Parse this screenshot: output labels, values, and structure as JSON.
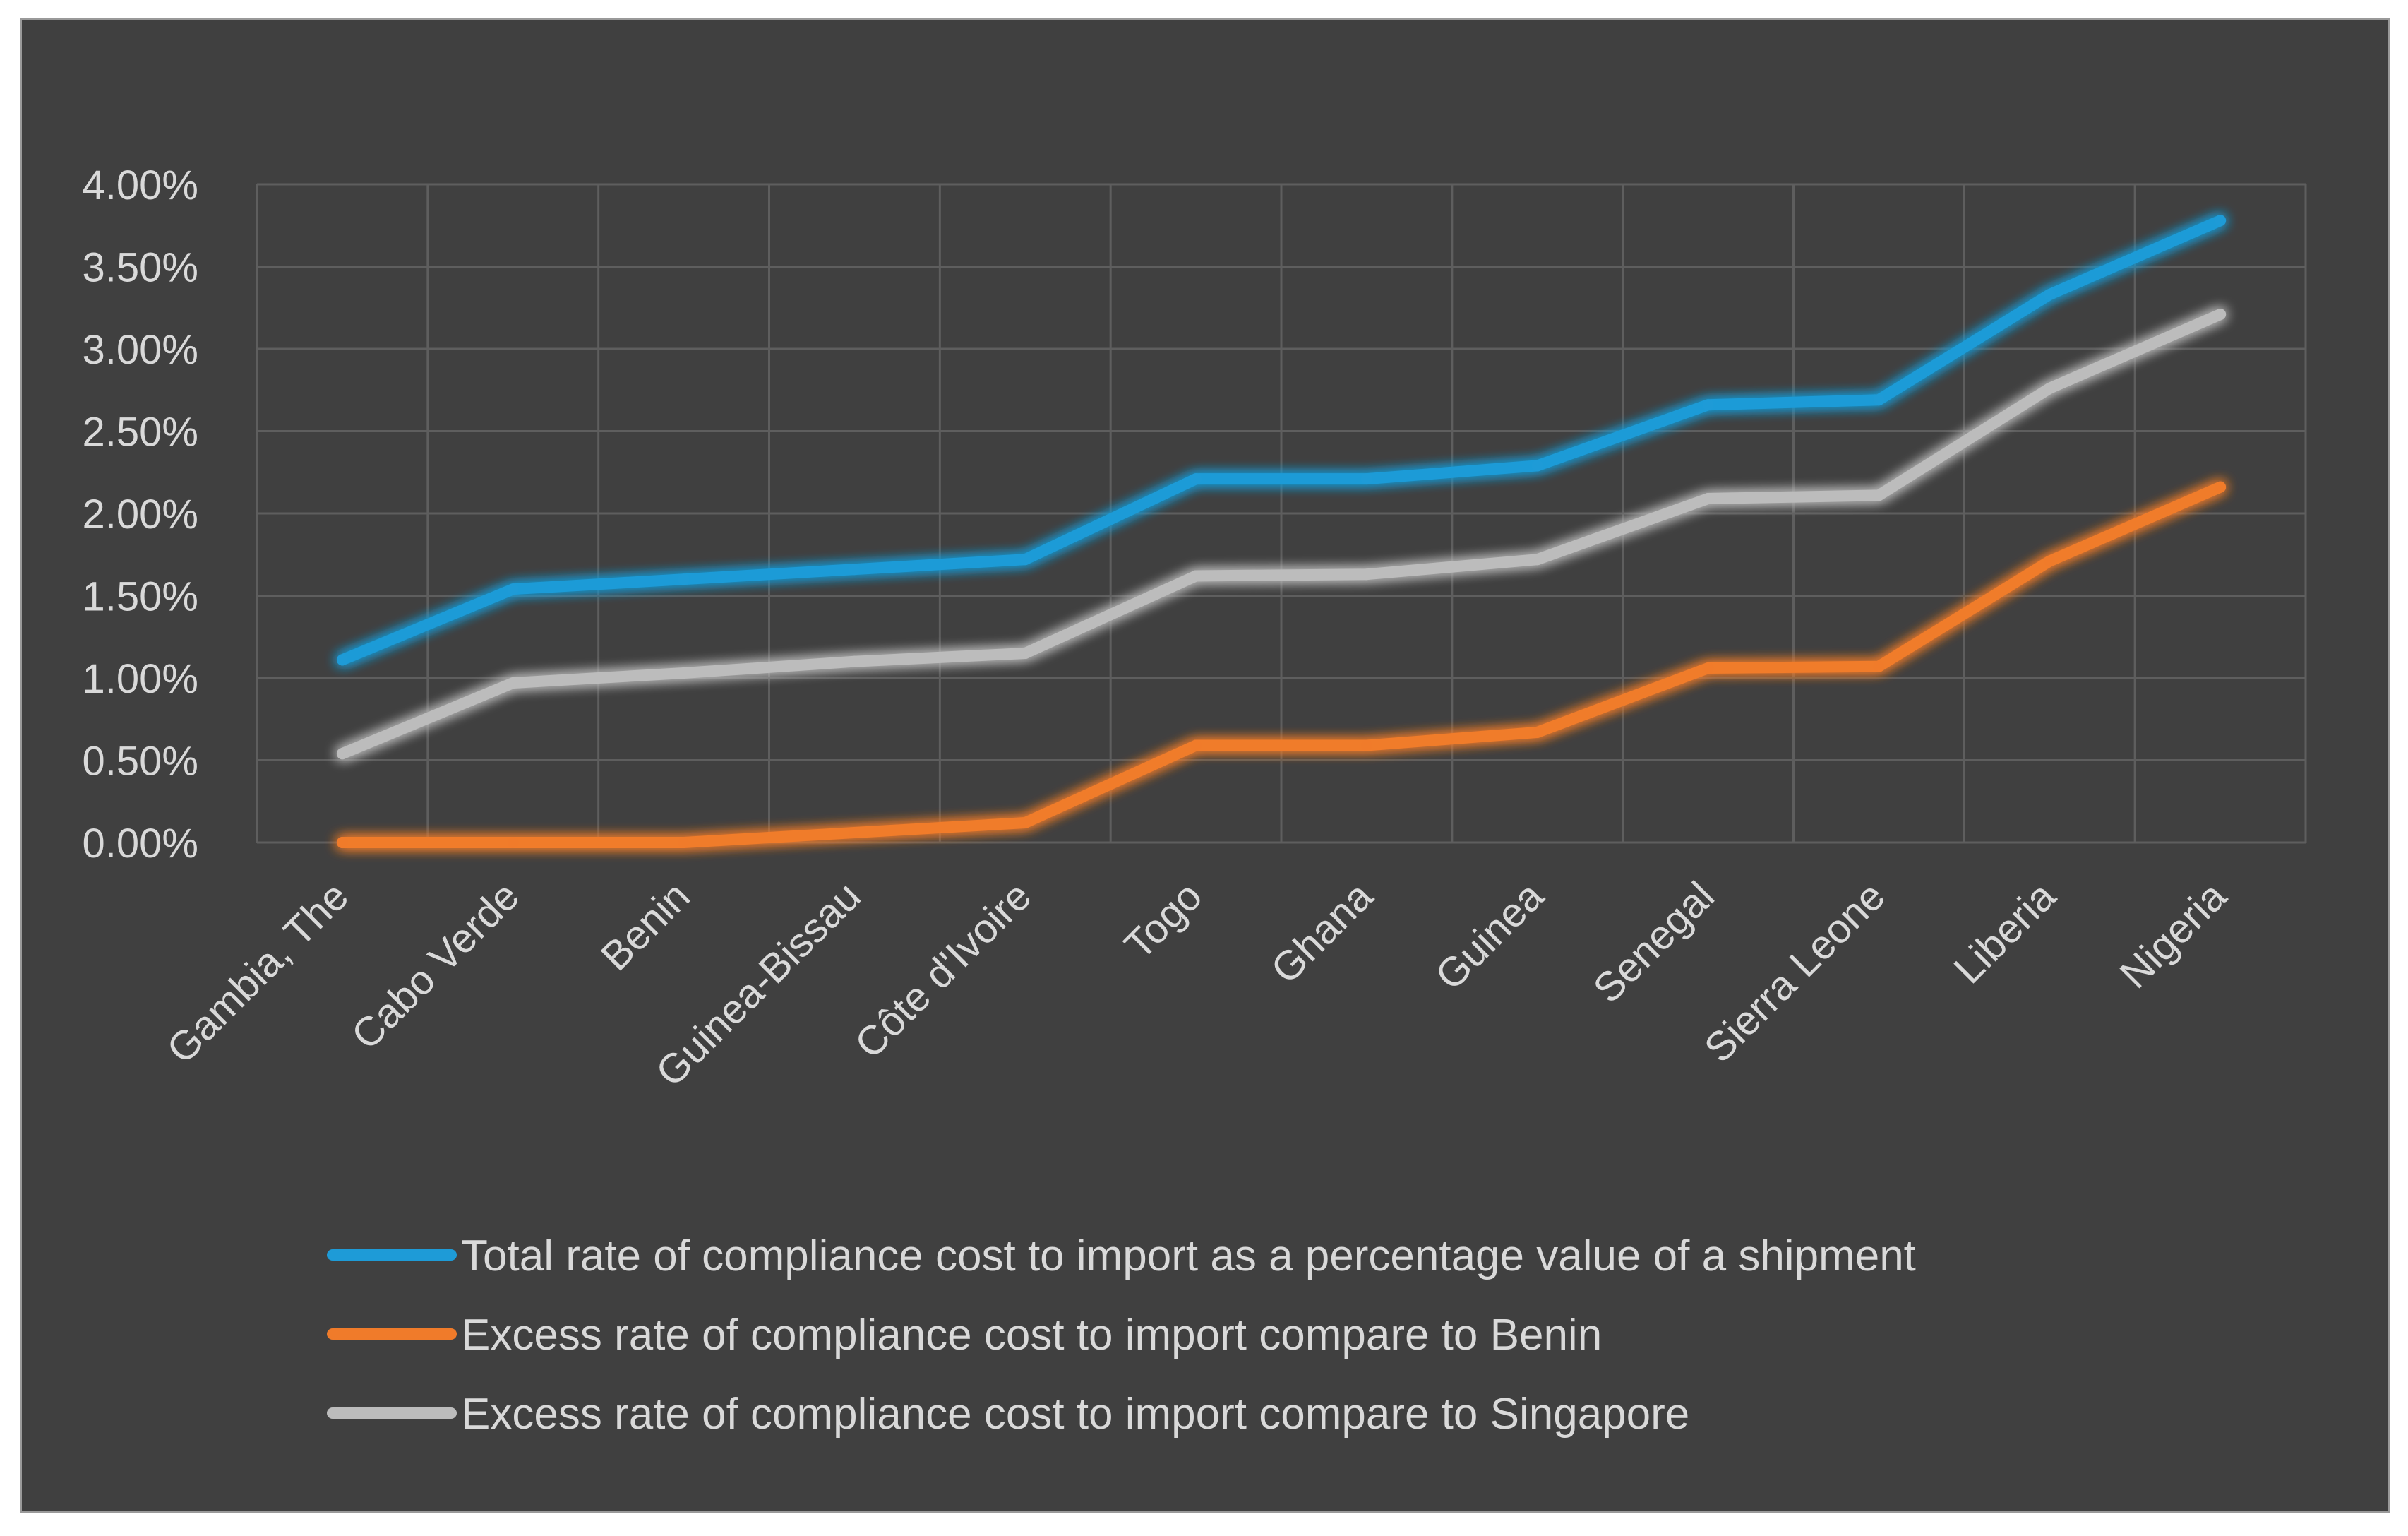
{
  "chart_data": {
    "type": "line",
    "title": "",
    "xlabel": "",
    "ylabel": "",
    "categories": [
      "Gambia, The",
      "Cabo Verde",
      "Benin",
      "Guinea-Bissau",
      "Côte d'Ivoire",
      "Togo",
      "Ghana",
      "Guinea",
      "Senegal",
      "Sierra Leone",
      "Liberia",
      "Nigeria"
    ],
    "ylim": [
      0,
      0.04
    ],
    "yticks": [
      0,
      0.005,
      0.01,
      0.015,
      0.02,
      0.025,
      0.03,
      0.035,
      0.04
    ],
    "ytick_labels": [
      "0.00%",
      "0.50%",
      "1.00%",
      "1.50%",
      "2.00%",
      "2.50%",
      "3.00%",
      "3.50%",
      "4.00%"
    ],
    "grid": true,
    "legend_position": "bottom",
    "series": [
      {
        "name": "Total rate of compliance cost to import as a percentage value of a shipment",
        "color": "#1e9bd7",
        "values": [
          0.0111,
          0.0154,
          0.016,
          0.0166,
          0.0172,
          0.0221,
          0.0221,
          0.0229,
          0.0266,
          0.0269,
          0.0333,
          0.0378
        ]
      },
      {
        "name": "Excess rate of compliance cost to import compare to Benin",
        "color": "#f07b2a",
        "values": [
          0.0,
          0.0,
          0.0,
          0.0006,
          0.0012,
          0.0059,
          0.0059,
          0.0067,
          0.0106,
          0.0107,
          0.0171,
          0.0216
        ]
      },
      {
        "name": "Excess rate of compliance cost to import compare to Singapore",
        "color": "#bcbcbc",
        "values": [
          0.0054,
          0.0097,
          0.0103,
          0.011,
          0.0115,
          0.0162,
          0.0163,
          0.0172,
          0.0209,
          0.0211,
          0.0276,
          0.0321
        ]
      }
    ]
  }
}
